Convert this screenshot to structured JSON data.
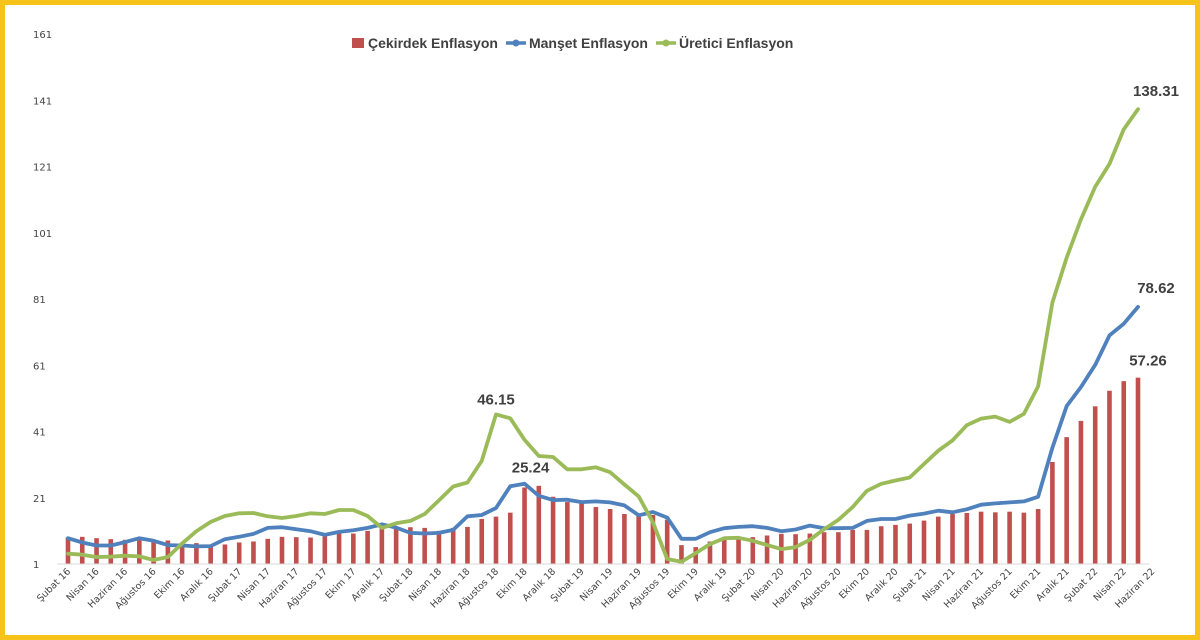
{
  "chart_data": {
    "type": "bar+line",
    "title": "",
    "xlabel": "",
    "ylabel": "",
    "ylim": [
      1,
      161
    ],
    "yticks": [
      1,
      21,
      41,
      61,
      81,
      101,
      121,
      141,
      161
    ],
    "x_labels": [
      "Şubat 16",
      "Nisan 16",
      "Haziran 16",
      "Ağustos 16",
      "Ekim 16",
      "Aralık 16",
      "Şubat 17",
      "Nisan 17",
      "Haziran 17",
      "Ağustos 17",
      "Ekim 17",
      "Aralık 17",
      "Şubat 18",
      "Nisan 18",
      "Haziran 18",
      "Ağustos 18",
      "Ekim 18",
      "Aralık 18",
      "Şubat 19",
      "Nisan 19",
      "Haziran 19",
      "Ağustos 19",
      "Ekim 19",
      "Aralık 19",
      "Şubat 20",
      "Nisan 20",
      "Haziran 20",
      "Ağustos 20",
      "Ekim 20",
      "Aralık 20",
      "Şubat 21",
      "Nisan 21",
      "Haziran 21",
      "Ağustos 21",
      "Ekim 21",
      "Aralık 21",
      "Şubat 22",
      "Nisan 22",
      "Haziran 22"
    ],
    "legend_position": "top-center",
    "series": [
      {
        "name": "Çekirdek Enflasyon",
        "kind": "bar",
        "color": "#c0504d",
        "values": [
          9.0,
          9.2,
          8.8,
          8.5,
          8.3,
          8.7,
          8.4,
          8.1,
          7.5,
          7.3,
          6.8,
          6.9,
          7.5,
          7.8,
          8.6,
          9.2,
          9.1,
          9.0,
          9.3,
          10.3,
          10.2,
          11.0,
          11.9,
          12.3,
          12.1,
          11.9,
          11.0,
          11.9,
          12.2,
          14.6,
          15.3,
          16.5,
          24.1,
          24.6,
          21.3,
          19.7,
          19.5,
          18.2,
          17.6,
          16.1,
          15.8,
          15.8,
          14.4,
          6.7,
          6.1,
          7.8,
          9.0,
          8.9,
          9.1,
          9.6,
          10.1,
          10.0,
          10.2,
          10.6,
          10.6,
          11.3,
          11.3,
          12.4,
          12.8,
          13.2,
          14.1,
          15.3,
          16.1,
          16.4,
          16.8,
          16.6,
          16.8,
          16.5,
          17.6,
          31.8,
          39.3,
          44.2,
          48.6,
          53.3,
          56.2,
          57.26
        ]
      },
      {
        "name": "Manşet Enflasyon",
        "kind": "line",
        "color": "#4f81bd",
        "values": [
          8.8,
          7.5,
          6.6,
          6.6,
          7.6,
          8.8,
          8.0,
          6.7,
          6.6,
          6.3,
          6.4,
          8.5,
          9.2,
          10.1,
          11.9,
          12.1,
          11.5,
          10.9,
          9.8,
          10.7,
          11.2,
          11.9,
          13.0,
          12.0,
          10.4,
          10.2,
          10.4,
          11.3,
          15.4,
          15.8,
          17.9,
          24.5,
          25.24,
          21.6,
          20.3,
          20.4,
          19.7,
          19.9,
          19.6,
          18.7,
          15.7,
          16.7,
          15.0,
          8.6,
          8.6,
          10.6,
          11.8,
          12.2,
          12.4,
          11.9,
          10.9,
          11.4,
          12.6,
          11.8,
          11.8,
          11.9,
          14.0,
          14.6,
          14.6,
          15.6,
          16.2,
          17.1,
          16.6,
          17.5,
          18.9,
          19.3,
          19.6,
          19.9,
          21.3,
          36.1,
          48.7,
          54.4,
          61.1,
          70.0,
          73.5,
          78.62
        ]
      },
      {
        "name": "Üretici Enflasyon",
        "kind": "line",
        "color": "#9bbb59",
        "values": [
          4.1,
          3.8,
          3.1,
          3.2,
          3.5,
          3.3,
          2.2,
          3.1,
          7.2,
          10.9,
          13.7,
          15.5,
          16.3,
          16.4,
          15.4,
          14.9,
          15.5,
          16.3,
          16.1,
          17.3,
          17.3,
          15.5,
          11.9,
          13.3,
          14.0,
          16.1,
          20.2,
          24.4,
          25.6,
          32.1,
          46.15,
          45.0,
          38.5,
          33.6,
          33.3,
          29.6,
          29.6,
          30.2,
          28.7,
          25.0,
          21.4,
          13.6,
          2.5,
          1.7,
          4.3,
          7.0,
          8.8,
          8.9,
          8.0,
          6.7,
          5.5,
          6.1,
          8.3,
          11.5,
          14.3,
          18.2,
          23.1,
          25.2,
          26.2,
          27.1,
          31.2,
          35.2,
          38.3,
          42.9,
          44.9,
          45.5,
          43.9,
          46.3,
          54.6,
          79.9,
          93.5,
          105.0,
          114.9,
          121.8,
          132.2,
          138.31
        ]
      }
    ],
    "annotations": [
      {
        "series": "Üretici Enflasyon",
        "text": "46.15",
        "index": 30
      },
      {
        "series": "Manşet Enflasyon",
        "text": "25.24",
        "index": 32
      },
      {
        "series": "Üretici Enflasyon",
        "text": "138.31",
        "index": 75
      },
      {
        "series": "Manşet Enflasyon",
        "text": "78.62",
        "index": 75
      },
      {
        "series": "Çekirdek Enflasyon",
        "text": "57.26",
        "index": 75
      }
    ]
  }
}
